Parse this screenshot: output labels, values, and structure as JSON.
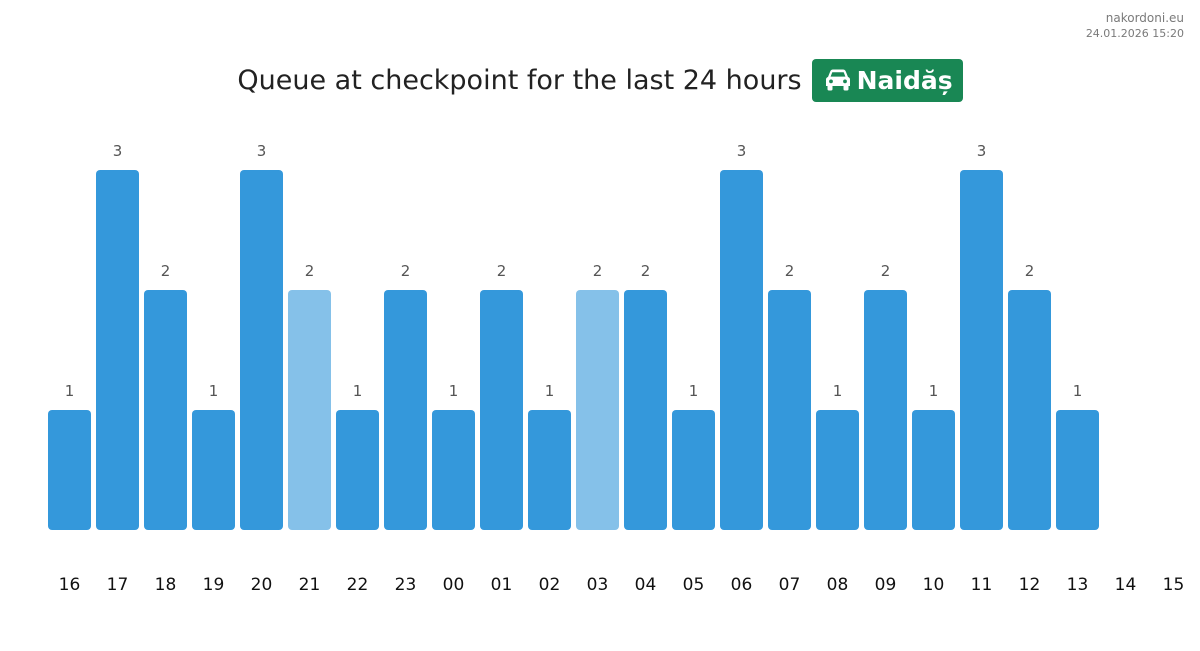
{
  "brand": {
    "site": "nakordoni.eu",
    "timestamp": "24.01.2026 15:20"
  },
  "header": {
    "title": "Queue at checkpoint for the last 24 hours",
    "checkpoint_name": "Naidăș",
    "checkpoint_icon": "car-icon",
    "badge_color": "#198754"
  },
  "chart_data": {
    "type": "bar",
    "categories": [
      "16",
      "17",
      "18",
      "19",
      "20",
      "21",
      "22",
      "23",
      "00",
      "01",
      "02",
      "03",
      "04",
      "05",
      "06",
      "07",
      "08",
      "09",
      "10",
      "11",
      "12",
      "13",
      "14",
      "15"
    ],
    "values": [
      1,
      3,
      2,
      1,
      3,
      2,
      1,
      2,
      1,
      2,
      1,
      2,
      2,
      1,
      3,
      2,
      1,
      2,
      1,
      3,
      2,
      1,
      null,
      null
    ],
    "highlighted": [
      false,
      false,
      false,
      false,
      false,
      true,
      false,
      false,
      false,
      false,
      false,
      true,
      false,
      false,
      false,
      false,
      false,
      false,
      false,
      false,
      false,
      false,
      false,
      false
    ],
    "ylim": [
      0,
      3
    ],
    "grid": false,
    "colors": {
      "bar": "#3498db",
      "bar_highlight": "#85c1e9",
      "value_label": "#555555",
      "tick_label": "#111111"
    }
  }
}
